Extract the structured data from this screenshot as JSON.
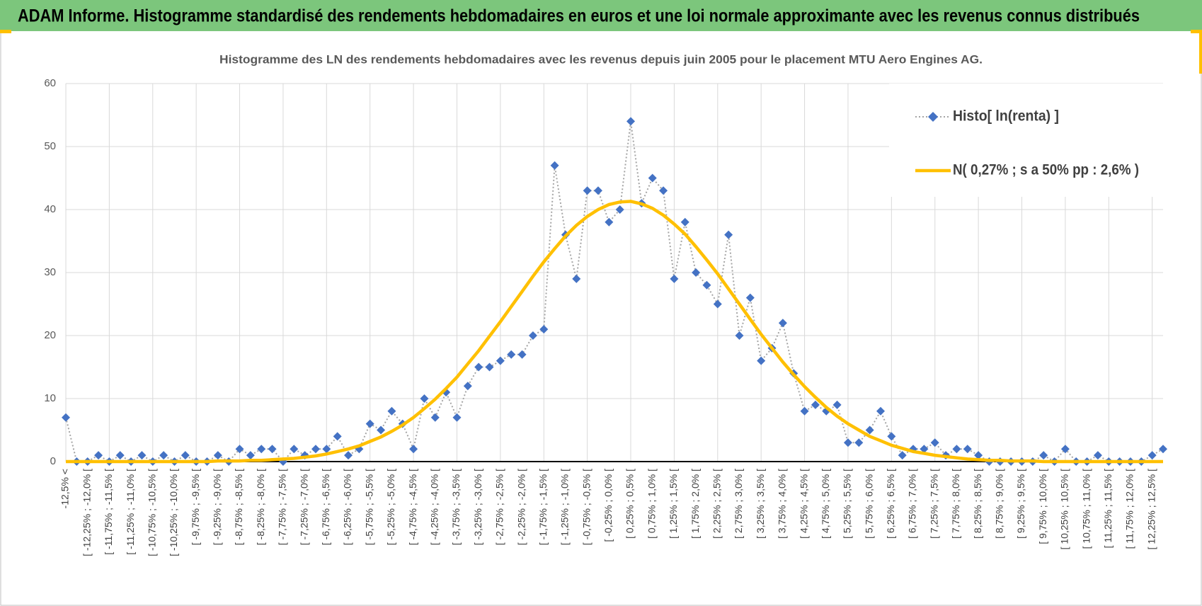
{
  "chart_data": {
    "type": "line",
    "title": "ADAM Informe. Histogramme standardisé des rendements hebdomadaires en euros et une loi normale approximante avec les revenus connus distribués",
    "subtitle": "Histogramme des LN des rendements hebdomadaires avec les revenus depuis juin 2005  pour le placement MTU Aero Engines AG.",
    "categories": [
      "-12,5% <",
      null,
      "[ -12,25% ; -12,0% [",
      null,
      "[ -11,75% ; -11,5% [",
      null,
      "[ -11,25% ; -11,0% [",
      null,
      "[ -10,75% ; -10,5% [",
      null,
      "[ -10,25% ; -10,0% [",
      null,
      "[ -9,75% ; -9,5% [",
      null,
      "[ -9,25% ; -9,0% [",
      null,
      "[ -8,75% ; -8,5% [",
      null,
      "[ -8,25% ; -8,0% [",
      null,
      "[ -7,75% ; -7,5% [",
      null,
      "[ -7,25% ; -7,0% [",
      null,
      "[ -6,75% ; -6,5% [",
      null,
      "[ -6,25% ; -6,0% [",
      null,
      "[ -5,75% ; -5,5% [",
      null,
      "[ -5,25% ; -5,0% [",
      null,
      "[ -4,75% ; -4,5% [",
      null,
      "[ -4,25% ; -4,0% [",
      null,
      "[ -3,75% ; -3,5% [",
      null,
      "[ -3,25% ; -3,0% [",
      null,
      "[ -2,75% ; -2,5% [",
      null,
      "[ -2,25% ; -2,0% [",
      null,
      "[ -1,75% ; -1,5% [",
      null,
      "[ -1,25% ; -1,0% [",
      null,
      "[ -0,75% ; -0,5% [",
      null,
      "[ -0,25% ; 0,0% [",
      null,
      "[ 0,25% ; 0,5% [",
      null,
      "[ 0,75% ; 1,0% [",
      null,
      "[ 1,25% ; 1,5% [",
      null,
      "[ 1,75% ; 2,0% [",
      null,
      "[ 2,25% ; 2,5% [",
      null,
      "[ 2,75% ; 3,0% [",
      null,
      "[ 3,25% ; 3,5% [",
      null,
      "[ 3,75% ; 4,0% [",
      null,
      "[ 4,25% ; 4,5% [",
      null,
      "[ 4,75% ; 5,0% [",
      null,
      "[ 5,25% ; 5,5% [",
      null,
      "[ 5,75% ; 6,0% [",
      null,
      "[ 6,25% ; 6,5% [",
      null,
      "[ 6,75% ; 7,0% [",
      null,
      "[ 7,25% ; 7,5% [",
      null,
      "[ 7,75% ; 8,0% [",
      null,
      "[ 8,25% ; 8,5% [",
      null,
      "[ 8,75% ; 9,0% [",
      null,
      "[ 9,25% ; 9,5% [",
      null,
      "[ 9,75% ; 10,0% [",
      null,
      "[ 10,25% ; 10,5% [",
      null,
      "[ 10,75% ; 11,0% [",
      null,
      "[ 11,25% ; 11,5% [",
      null,
      "[ 11,75% ; 12,0% [",
      null,
      "[ 12,25% ; 12,5% [",
      null
    ],
    "series": [
      {
        "name": "Histo[ ln(renta) ]",
        "color": "#4472c4",
        "line_color": "#a5a5a5",
        "values": [
          7,
          0,
          0,
          1,
          0,
          1,
          0,
          1,
          0,
          1,
          0,
          1,
          0,
          0,
          1,
          0,
          2,
          1,
          2,
          2,
          0,
          2,
          1,
          2,
          2,
          4,
          1,
          2,
          6,
          5,
          8,
          6,
          2,
          10,
          7,
          11,
          7,
          12,
          15,
          15,
          16,
          17,
          17,
          20,
          21,
          47,
          36,
          29,
          43,
          43,
          38,
          40,
          54,
          41,
          45,
          43,
          29,
          38,
          30,
          28,
          25,
          36,
          20,
          26,
          16,
          18,
          22,
          14,
          8,
          9,
          8,
          9,
          3,
          3,
          5,
          8,
          4,
          1,
          2,
          2,
          3,
          1,
          2,
          2,
          1,
          0,
          0,
          0,
          0,
          0,
          1,
          0,
          2,
          0,
          0,
          1,
          0,
          0,
          0,
          0,
          1,
          2
        ]
      },
      {
        "name": "N( 0,27% ; s a 50% pp : 2,6% )",
        "color": "#ffc000",
        "values": [
          0,
          0,
          0,
          0,
          0,
          0,
          0,
          0,
          0,
          0,
          0,
          0,
          0,
          0,
          0.1,
          0.1,
          0.1,
          0.2,
          0.2,
          0.3,
          0.4,
          0.5,
          0.7,
          0.9,
          1.2,
          1.6,
          2.0,
          2.5,
          3.2,
          3.9,
          4.8,
          5.8,
          7.0,
          8.4,
          9.9,
          11.6,
          13.4,
          15.5,
          17.6,
          19.9,
          22.2,
          24.6,
          27.0,
          29.4,
          31.7,
          33.8,
          35.8,
          37.5,
          38.9,
          40.0,
          40.8,
          41.2,
          41.3,
          40.9,
          40.2,
          39.1,
          37.7,
          36.1,
          34.1,
          32.0,
          29.8,
          27.4,
          25.0,
          22.6,
          20.2,
          18.0,
          15.8,
          13.8,
          11.9,
          10.2,
          8.6,
          7.2,
          6.0,
          5.0,
          4.0,
          3.3,
          2.6,
          2.1,
          1.6,
          1.3,
          1.0,
          0.8,
          0.6,
          0.4,
          0.3,
          0.2,
          0.2,
          0.1,
          0.1,
          0.1,
          0,
          0,
          0,
          0,
          0,
          0,
          0,
          0,
          0,
          0,
          0,
          0
        ]
      }
    ],
    "ylim": [
      0,
      60
    ],
    "yticks": [
      0,
      10,
      20,
      30,
      40,
      50,
      60
    ],
    "grid": true,
    "legend": "top-right"
  }
}
